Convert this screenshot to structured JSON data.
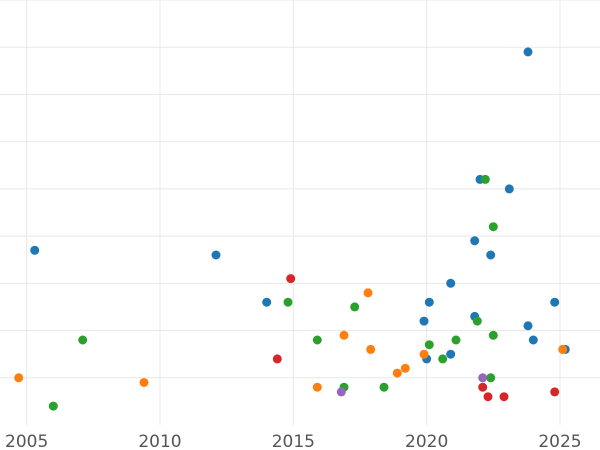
{
  "chart_data": {
    "type": "scatter",
    "title": "",
    "xlabel": "",
    "ylabel": "",
    "xlim": [
      2004.0,
      2026.5
    ],
    "ylim": [
      0,
      9
    ],
    "x_ticks": [
      2005,
      2010,
      2015,
      2020,
      2025
    ],
    "x_tick_labels": [
      "2005",
      "2010",
      "2015",
      "2020",
      "2025"
    ],
    "y_gridlines": [
      1,
      2,
      3,
      4,
      5,
      6,
      7,
      8,
      9
    ],
    "grid": true,
    "legend": "none",
    "series": [
      {
        "color": "#1f77b4",
        "points": [
          {
            "x": 2005.3,
            "y": 3.7
          },
          {
            "x": 2012.1,
            "y": 3.6
          },
          {
            "x": 2014.0,
            "y": 2.6
          },
          {
            "x": 2019.9,
            "y": 2.2
          },
          {
            "x": 2020.1,
            "y": 2.6
          },
          {
            "x": 2020.0,
            "y": 1.4
          },
          {
            "x": 2020.9,
            "y": 1.5
          },
          {
            "x": 2020.9,
            "y": 3.0
          },
          {
            "x": 2021.8,
            "y": 3.9
          },
          {
            "x": 2021.8,
            "y": 2.3
          },
          {
            "x": 2022.0,
            "y": 5.2
          },
          {
            "x": 2022.4,
            "y": 3.6
          },
          {
            "x": 2023.1,
            "y": 5.0
          },
          {
            "x": 2023.8,
            "y": 7.9
          },
          {
            "x": 2023.8,
            "y": 2.1
          },
          {
            "x": 2024.0,
            "y": 1.8
          },
          {
            "x": 2024.8,
            "y": 2.6
          },
          {
            "x": 2025.2,
            "y": 1.6
          }
        ]
      },
      {
        "color": "#ff7f0e",
        "points": [
          {
            "x": 2004.7,
            "y": 1.0
          },
          {
            "x": 2009.4,
            "y": 0.9
          },
          {
            "x": 2015.9,
            "y": 0.8
          },
          {
            "x": 2016.9,
            "y": 1.9
          },
          {
            "x": 2017.8,
            "y": 2.8
          },
          {
            "x": 2017.9,
            "y": 1.6
          },
          {
            "x": 2018.9,
            "y": 1.1
          },
          {
            "x": 2019.2,
            "y": 1.2
          },
          {
            "x": 2019.9,
            "y": 1.5
          },
          {
            "x": 2025.1,
            "y": 1.6
          }
        ]
      },
      {
        "color": "#2ca02c",
        "points": [
          {
            "x": 2006.0,
            "y": 0.4
          },
          {
            "x": 2007.1,
            "y": 1.8
          },
          {
            "x": 2014.8,
            "y": 2.6
          },
          {
            "x": 2015.9,
            "y": 1.8
          },
          {
            "x": 2016.9,
            "y": 0.8
          },
          {
            "x": 2017.3,
            "y": 2.5
          },
          {
            "x": 2018.4,
            "y": 0.8
          },
          {
            "x": 2020.1,
            "y": 1.7
          },
          {
            "x": 2020.6,
            "y": 1.4
          },
          {
            "x": 2021.1,
            "y": 1.8
          },
          {
            "x": 2021.9,
            "y": 2.2
          },
          {
            "x": 2022.2,
            "y": 5.2
          },
          {
            "x": 2022.4,
            "y": 1.0
          },
          {
            "x": 2022.5,
            "y": 1.9
          },
          {
            "x": 2022.5,
            "y": 4.2
          }
        ]
      },
      {
        "color": "#d62728",
        "points": [
          {
            "x": 2014.4,
            "y": 1.4
          },
          {
            "x": 2014.9,
            "y": 3.1
          },
          {
            "x": 2022.1,
            "y": 0.8
          },
          {
            "x": 2022.3,
            "y": 0.6
          },
          {
            "x": 2022.9,
            "y": 0.6
          },
          {
            "x": 2024.8,
            "y": 0.7
          }
        ]
      },
      {
        "color": "#9467bd",
        "points": [
          {
            "x": 2016.8,
            "y": 0.7
          },
          {
            "x": 2022.1,
            "y": 1.0
          }
        ]
      }
    ]
  }
}
